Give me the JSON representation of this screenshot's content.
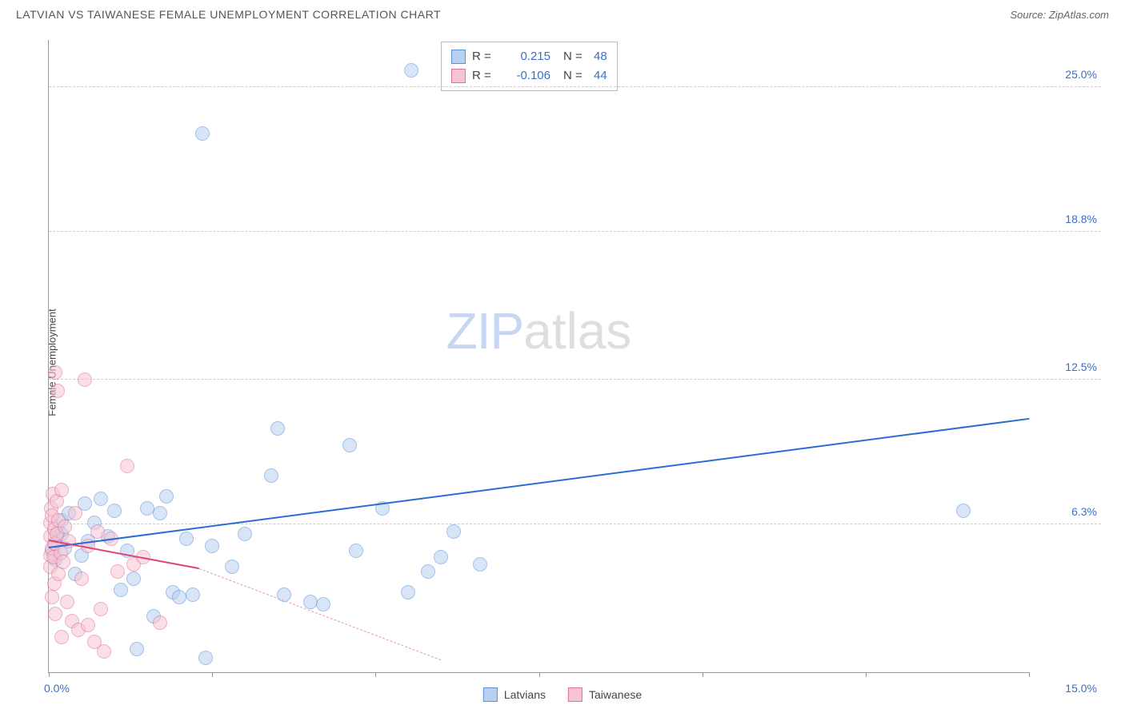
{
  "title": "LATVIAN VS TAIWANESE FEMALE UNEMPLOYMENT CORRELATION CHART",
  "source": "Source: ZipAtlas.com",
  "y_axis_label": "Female Unemployment",
  "chart": {
    "type": "scatter",
    "xlim": [
      0,
      15
    ],
    "ylim": [
      0,
      27
    ],
    "x_ticks": [
      0,
      2.5,
      5,
      7.5,
      10,
      12.5,
      15
    ],
    "x_tick_labels": {
      "0": "0.0%",
      "15": "15.0%"
    },
    "y_gridlines": [
      6.3,
      12.5,
      18.8,
      25.0
    ],
    "y_tick_labels": [
      "6.3%",
      "12.5%",
      "18.8%",
      "25.0%"
    ],
    "background_color": "#ffffff",
    "grid_color": "#cccccc",
    "axis_color": "#999999",
    "tick_label_color": "#3b6fc9",
    "marker_radius": 9,
    "marker_stroke_width": 1.5,
    "series": [
      {
        "name": "Latvians",
        "fill": "#b9d1f0",
        "stroke": "#5b8fd6",
        "fill_opacity": 0.55,
        "r": "0.215",
        "n": "48",
        "trend": {
          "x1": 0,
          "y1": 5.3,
          "x2": 15,
          "y2": 10.8,
          "color": "#2b6cd4",
          "width": 2.5,
          "dash": "solid"
        },
        "points": [
          [
            0.05,
            5.2
          ],
          [
            0.1,
            5.5
          ],
          [
            0.1,
            4.8
          ],
          [
            0.15,
            6.0
          ],
          [
            0.2,
            5.9
          ],
          [
            0.2,
            6.5
          ],
          [
            0.25,
            5.3
          ],
          [
            0.3,
            6.8
          ],
          [
            0.4,
            4.2
          ],
          [
            0.5,
            5.0
          ],
          [
            0.55,
            7.2
          ],
          [
            0.6,
            5.6
          ],
          [
            0.7,
            6.4
          ],
          [
            0.8,
            7.4
          ],
          [
            0.9,
            5.8
          ],
          [
            1.0,
            6.9
          ],
          [
            1.1,
            3.5
          ],
          [
            1.2,
            5.2
          ],
          [
            1.3,
            4.0
          ],
          [
            1.35,
            1.0
          ],
          [
            1.5,
            7.0
          ],
          [
            1.6,
            2.4
          ],
          [
            1.7,
            6.8
          ],
          [
            1.8,
            7.5
          ],
          [
            1.9,
            3.4
          ],
          [
            2.0,
            3.2
          ],
          [
            2.1,
            5.7
          ],
          [
            2.2,
            3.3
          ],
          [
            2.4,
            0.6
          ],
          [
            2.35,
            23.0
          ],
          [
            2.5,
            5.4
          ],
          [
            2.8,
            4.5
          ],
          [
            3.0,
            5.9
          ],
          [
            3.4,
            8.4
          ],
          [
            3.5,
            10.4
          ],
          [
            3.6,
            3.3
          ],
          [
            4.0,
            3.0
          ],
          [
            4.2,
            2.9
          ],
          [
            4.6,
            9.7
          ],
          [
            4.7,
            5.2
          ],
          [
            5.1,
            7.0
          ],
          [
            5.5,
            3.4
          ],
          [
            5.55,
            25.7
          ],
          [
            5.8,
            4.3
          ],
          [
            6.0,
            4.9
          ],
          [
            6.2,
            6.0
          ],
          [
            6.6,
            4.6
          ],
          [
            14.0,
            6.9
          ]
        ]
      },
      {
        "name": "Taiwanese",
        "fill": "#f6c5d3",
        "stroke": "#e36f94",
        "fill_opacity": 0.55,
        "r": "-0.106",
        "n": "44",
        "trend_solid": {
          "x1": 0,
          "y1": 5.6,
          "x2": 2.3,
          "y2": 4.4,
          "color": "#e04378",
          "width": 2,
          "dash": "solid"
        },
        "trend_dash": {
          "x1": 2.3,
          "y1": 4.4,
          "x2": 6.0,
          "y2": 0.5,
          "color": "#e699b0",
          "width": 1,
          "dash": "dashed"
        },
        "points": [
          [
            0.02,
            5.0
          ],
          [
            0.02,
            5.8
          ],
          [
            0.03,
            6.4
          ],
          [
            0.03,
            4.5
          ],
          [
            0.04,
            7.0
          ],
          [
            0.05,
            6.7
          ],
          [
            0.05,
            5.3
          ],
          [
            0.05,
            3.2
          ],
          [
            0.06,
            7.6
          ],
          [
            0.07,
            4.9
          ],
          [
            0.08,
            5.5
          ],
          [
            0.08,
            6.1
          ],
          [
            0.09,
            3.8
          ],
          [
            0.1,
            2.5
          ],
          [
            0.1,
            12.8
          ],
          [
            0.12,
            5.9
          ],
          [
            0.12,
            7.3
          ],
          [
            0.13,
            12.0
          ],
          [
            0.15,
            4.2
          ],
          [
            0.15,
            6.5
          ],
          [
            0.18,
            5.1
          ],
          [
            0.2,
            1.5
          ],
          [
            0.2,
            7.8
          ],
          [
            0.22,
            4.7
          ],
          [
            0.25,
            6.2
          ],
          [
            0.28,
            3.0
          ],
          [
            0.3,
            5.6
          ],
          [
            0.35,
            2.2
          ],
          [
            0.4,
            6.8
          ],
          [
            0.45,
            1.8
          ],
          [
            0.5,
            4.0
          ],
          [
            0.55,
            12.5
          ],
          [
            0.6,
            5.4
          ],
          [
            0.6,
            2.0
          ],
          [
            0.7,
            1.3
          ],
          [
            0.75,
            6.0
          ],
          [
            0.8,
            2.7
          ],
          [
            0.85,
            0.9
          ],
          [
            0.95,
            5.7
          ],
          [
            1.05,
            4.3
          ],
          [
            1.2,
            8.8
          ],
          [
            1.3,
            4.6
          ],
          [
            1.45,
            4.9
          ],
          [
            1.7,
            2.1
          ]
        ]
      }
    ]
  },
  "legend_bottom": [
    "Latvians",
    "Taiwanese"
  ],
  "watermark": {
    "zip": "ZIP",
    "atlas": "atlas"
  }
}
